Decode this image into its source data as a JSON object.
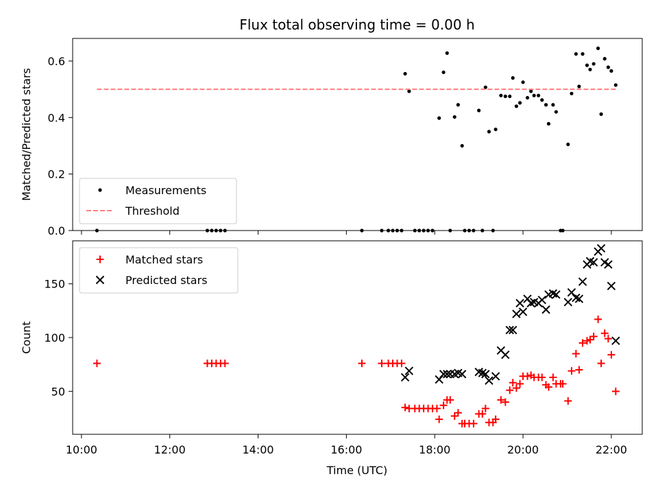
{
  "chart_data": {
    "type": "scatter",
    "title": "Flux total observing time = 0.00 h",
    "xlabel": "Time (UTC)",
    "x_ticks": [
      "10:00",
      "12:00",
      "14:00",
      "16:00",
      "18:00",
      "20:00",
      "22:00"
    ],
    "x_tick_hours": [
      10,
      12,
      14,
      16,
      18,
      20,
      22
    ],
    "xlim_hours": [
      9.8,
      22.7
    ],
    "panels": [
      {
        "ylabel": "Matched/Predicted stars",
        "ylim": [
          0,
          0.68
        ],
        "y_ticks": [
          "0.0",
          "0.2",
          "0.4",
          "0.6"
        ],
        "y_tick_values": [
          0.0,
          0.2,
          0.4,
          0.6
        ],
        "legend_position": "lower-left",
        "series": [
          {
            "name": "Measurements",
            "marker": "dot",
            "color": "#000000",
            "points": [
              [
                10.35,
                0.0
              ],
              [
                12.85,
                0.0
              ],
              [
                12.95,
                0.0
              ],
              [
                13.05,
                0.0
              ],
              [
                13.15,
                0.0
              ],
              [
                13.25,
                0.0
              ],
              [
                16.35,
                0.0
              ],
              [
                16.8,
                0.0
              ],
              [
                16.95,
                0.0
              ],
              [
                17.05,
                0.0
              ],
              [
                17.15,
                0.0
              ],
              [
                17.25,
                0.0
              ],
              [
                17.33,
                0.555
              ],
              [
                17.42,
                0.493
              ],
              [
                17.55,
                0.0
              ],
              [
                17.65,
                0.0
              ],
              [
                17.75,
                0.0
              ],
              [
                17.85,
                0.0
              ],
              [
                17.95,
                0.0
              ],
              [
                18.1,
                0.398
              ],
              [
                18.2,
                0.56
              ],
              [
                18.28,
                0.628
              ],
              [
                18.35,
                0.0
              ],
              [
                18.45,
                0.402
              ],
              [
                18.53,
                0.445
              ],
              [
                18.62,
                0.3
              ],
              [
                18.68,
                0.0
              ],
              [
                18.78,
                0.0
              ],
              [
                18.88,
                0.0
              ],
              [
                19.0,
                0.425
              ],
              [
                19.08,
                0.0
              ],
              [
                19.15,
                0.507
              ],
              [
                19.23,
                0.35
              ],
              [
                19.32,
                0.0
              ],
              [
                19.38,
                0.358
              ],
              [
                19.5,
                0.478
              ],
              [
                19.6,
                0.475
              ],
              [
                19.7,
                0.475
              ],
              [
                19.77,
                0.54
              ],
              [
                19.85,
                0.44
              ],
              [
                19.93,
                0.452
              ],
              [
                20.0,
                0.525
              ],
              [
                20.1,
                0.47
              ],
              [
                20.18,
                0.493
              ],
              [
                20.25,
                0.478
              ],
              [
                20.35,
                0.478
              ],
              [
                20.43,
                0.462
              ],
              [
                20.52,
                0.445
              ],
              [
                20.58,
                0.378
              ],
              [
                20.68,
                0.445
              ],
              [
                20.75,
                0.42
              ],
              [
                20.85,
                0.0
              ],
              [
                20.9,
                0.0
              ],
              [
                21.02,
                0.305
              ],
              [
                21.1,
                0.485
              ],
              [
                21.2,
                0.625
              ],
              [
                21.27,
                0.51
              ],
              [
                21.35,
                0.625
              ],
              [
                21.45,
                0.585
              ],
              [
                21.52,
                0.57
              ],
              [
                21.6,
                0.59
              ],
              [
                21.7,
                0.645
              ],
              [
                21.77,
                0.412
              ],
              [
                21.85,
                0.608
              ],
              [
                21.93,
                0.578
              ],
              [
                22.0,
                0.565
              ],
              [
                22.1,
                0.515
              ]
            ]
          },
          {
            "name": "Threshold",
            "marker": "dashed-line",
            "color": "#ff7f7f",
            "points": [
              [
                10.35,
                0.5
              ],
              [
                22.1,
                0.5
              ]
            ]
          }
        ]
      },
      {
        "ylabel": "Count",
        "ylim": [
          10,
          190
        ],
        "y_ticks": [
          "50",
          "100",
          "150"
        ],
        "y_tick_values": [
          50,
          100,
          150
        ],
        "legend_position": "upper-left",
        "series": [
          {
            "name": "Matched stars",
            "marker": "plus",
            "color": "#ff0000",
            "points": [
              [
                10.35,
                76
              ],
              [
                12.85,
                76
              ],
              [
                12.95,
                76
              ],
              [
                13.05,
                76
              ],
              [
                13.15,
                76
              ],
              [
                13.25,
                76
              ],
              [
                16.35,
                76
              ],
              [
                16.8,
                76
              ],
              [
                16.95,
                76
              ],
              [
                17.05,
                76
              ],
              [
                17.15,
                76
              ],
              [
                17.25,
                76
              ],
              [
                17.33,
                35
              ],
              [
                17.42,
                34
              ],
              [
                17.55,
                34
              ],
              [
                17.65,
                34
              ],
              [
                17.75,
                34
              ],
              [
                17.85,
                34
              ],
              [
                17.95,
                34
              ],
              [
                18.05,
                34
              ],
              [
                18.1,
                24
              ],
              [
                18.2,
                37
              ],
              [
                18.28,
                42
              ],
              [
                18.35,
                42
              ],
              [
                18.45,
                27
              ],
              [
                18.53,
                30
              ],
              [
                18.62,
                20
              ],
              [
                18.68,
                20
              ],
              [
                18.78,
                20
              ],
              [
                18.88,
                20
              ],
              [
                19.0,
                29
              ],
              [
                19.08,
                29
              ],
              [
                19.15,
                34
              ],
              [
                19.23,
                21
              ],
              [
                19.32,
                21
              ],
              [
                19.38,
                24
              ],
              [
                19.5,
                42
              ],
              [
                19.6,
                40
              ],
              [
                19.7,
                51
              ],
              [
                19.77,
                58
              ],
              [
                19.85,
                53
              ],
              [
                19.93,
                57
              ],
              [
                20.0,
                64
              ],
              [
                20.1,
                64
              ],
              [
                20.18,
                65
              ],
              [
                20.25,
                63
              ],
              [
                20.35,
                63
              ],
              [
                20.43,
                63
              ],
              [
                20.52,
                56
              ],
              [
                20.58,
                54
              ],
              [
                20.68,
                63
              ],
              [
                20.75,
                57
              ],
              [
                20.85,
                57
              ],
              [
                20.9,
                57
              ],
              [
                21.02,
                41
              ],
              [
                21.1,
                69
              ],
              [
                21.2,
                85
              ],
              [
                21.27,
                70
              ],
              [
                21.35,
                95
              ],
              [
                21.45,
                97
              ],
              [
                21.52,
                98
              ],
              [
                21.6,
                101
              ],
              [
                21.7,
                117
              ],
              [
                21.77,
                76
              ],
              [
                21.85,
                104
              ],
              [
                21.93,
                99
              ],
              [
                22.0,
                84
              ],
              [
                22.1,
                50
              ]
            ]
          },
          {
            "name": "Predicted stars",
            "marker": "x",
            "color": "#000000",
            "points": [
              [
                17.33,
                63
              ],
              [
                17.42,
                69
              ],
              [
                18.1,
                61
              ],
              [
                18.2,
                66
              ],
              [
                18.28,
                66
              ],
              [
                18.35,
                66
              ],
              [
                18.45,
                66
              ],
              [
                18.53,
                67
              ],
              [
                18.62,
                66
              ],
              [
                19.0,
                68
              ],
              [
                19.08,
                67
              ],
              [
                19.15,
                66
              ],
              [
                19.23,
                60
              ],
              [
                19.38,
                64
              ],
              [
                19.5,
                88
              ],
              [
                19.6,
                84
              ],
              [
                19.7,
                107
              ],
              [
                19.77,
                107
              ],
              [
                19.85,
                122
              ],
              [
                19.93,
                132
              ],
              [
                20.0,
                124
              ],
              [
                20.1,
                136
              ],
              [
                20.18,
                132
              ],
              [
                20.25,
                133
              ],
              [
                20.35,
                132
              ],
              [
                20.43,
                135
              ],
              [
                20.52,
                126
              ],
              [
                20.58,
                140
              ],
              [
                20.68,
                141
              ],
              [
                20.75,
                140
              ],
              [
                21.02,
                133
              ],
              [
                21.1,
                142
              ],
              [
                21.2,
                137
              ],
              [
                21.27,
                136
              ],
              [
                21.35,
                152
              ],
              [
                21.45,
                168
              ],
              [
                21.52,
                171
              ],
              [
                21.6,
                170
              ],
              [
                21.7,
                180
              ],
              [
                21.77,
                183
              ],
              [
                21.85,
                170
              ],
              [
                21.93,
                168
              ],
              [
                22.0,
                148
              ],
              [
                22.1,
                97
              ]
            ]
          }
        ]
      }
    ]
  }
}
